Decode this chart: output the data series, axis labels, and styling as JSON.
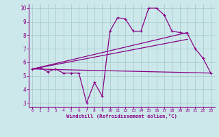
{
  "background_color": "#cce8ea",
  "grid_color": "#aacccc",
  "line_color": "#880088",
  "xlabel": "Windchill (Refroidissement éolien,°C)",
  "xlim": [
    -0.5,
    23.5
  ],
  "ylim": [
    2.7,
    10.3
  ],
  "yticks": [
    3,
    4,
    5,
    6,
    7,
    8,
    9,
    10
  ],
  "xticks": [
    0,
    1,
    2,
    3,
    4,
    5,
    6,
    7,
    8,
    9,
    10,
    11,
    12,
    13,
    14,
    15,
    16,
    17,
    18,
    19,
    20,
    21,
    22,
    23
  ],
  "series1_x": [
    0,
    1,
    2,
    3,
    4,
    5,
    6,
    7,
    8,
    9,
    10,
    11,
    12,
    13,
    14,
    15,
    16,
    17,
    18,
    19,
    20,
    21,
    22,
    23
  ],
  "series1_y": [
    5.5,
    5.6,
    5.3,
    5.5,
    5.2,
    5.2,
    5.2,
    3.0,
    4.5,
    3.5,
    8.3,
    9.3,
    9.2,
    8.3,
    8.3,
    10.0,
    10.0,
    9.5,
    8.3,
    8.2,
    8.1,
    7.0,
    6.3,
    5.2
  ],
  "series2_x": [
    0,
    23
  ],
  "series2_y": [
    5.5,
    5.2
  ],
  "series3_x": [
    0,
    20
  ],
  "series3_y": [
    5.5,
    8.2
  ],
  "series4_x": [
    0,
    20
  ],
  "series4_y": [
    5.5,
    7.7
  ]
}
